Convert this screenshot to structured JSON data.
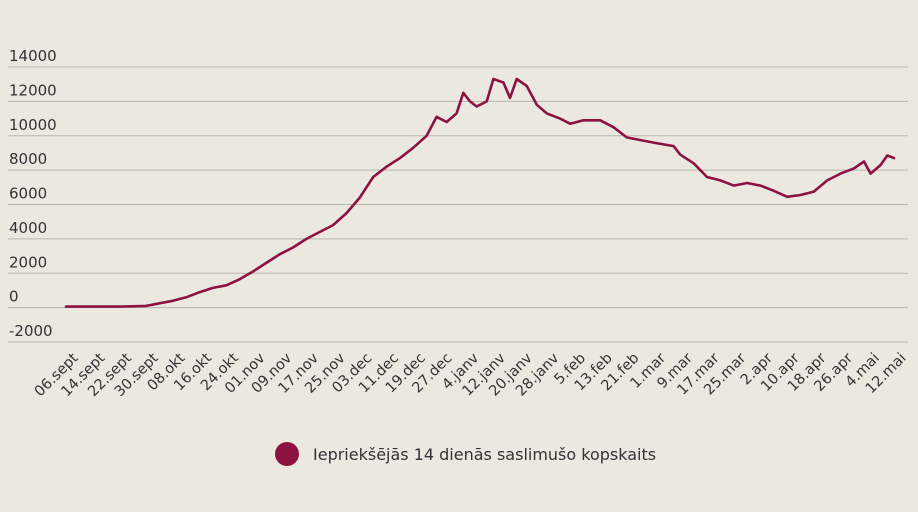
{
  "chart_data": {
    "type": "line",
    "title": "",
    "xlabel": "",
    "ylabel": "",
    "ylim": [
      -2000,
      14000
    ],
    "y_ticks": [
      14000,
      12000,
      10000,
      8000,
      6000,
      4000,
      2000,
      0,
      -2000
    ],
    "y_tick_labels": [
      "14000",
      "12000",
      "10000",
      "8000",
      "6000",
      "4000",
      "2000",
      "0",
      "-2000"
    ],
    "x_range": [
      "2020-09-06",
      "2021-05-12"
    ],
    "x_tick_dates": [
      "2020-09-06",
      "2020-09-14",
      "2020-09-22",
      "2020-09-30",
      "2020-10-08",
      "2020-10-16",
      "2020-10-24",
      "2020-11-01",
      "2020-11-09",
      "2020-11-17",
      "2020-11-25",
      "2020-12-03",
      "2020-12-11",
      "2020-12-19",
      "2020-12-27",
      "2021-01-04",
      "2021-01-12",
      "2021-01-20",
      "2021-01-28",
      "2021-02-05",
      "2021-02-13",
      "2021-02-21",
      "2021-03-01",
      "2021-03-09",
      "2021-03-17",
      "2021-03-25",
      "2021-04-02",
      "2021-04-10",
      "2021-04-18",
      "2021-04-26",
      "2021-05-04",
      "2021-05-12"
    ],
    "x_tick_labels": [
      "06.sept",
      "14.sept",
      "22.sept",
      "30.sept",
      "08.okt",
      "16.okt",
      "24.okt",
      "01.nov",
      "09.nov",
      "17.nov",
      "25.nov",
      "03.dec",
      "11.dec",
      "19.dec",
      "27.dec",
      "4.janv",
      "12.janv",
      "20.janv",
      "28.janv",
      "5.feb",
      "13.feb",
      "21.feb",
      "1.mar",
      "9.mar",
      "17.mar",
      "25.mar",
      "2.apr",
      "10.apr",
      "18.apr",
      "26.apr",
      "4.mai",
      "12.mai"
    ],
    "grid": true,
    "legend_position": "bottom",
    "colors": {
      "series": "#8c1240",
      "grid": "#b9b6ae",
      "background": "#ebe8e0",
      "text": "#333333"
    },
    "series": [
      {
        "name": "Iepriekšējās 14 dienās saslimušo kopskaits",
        "points": [
          [
            "2020-09-06",
            60
          ],
          [
            "2020-09-14",
            60
          ],
          [
            "2020-09-22",
            60
          ],
          [
            "2020-09-30",
            100
          ],
          [
            "2020-10-04",
            250
          ],
          [
            "2020-10-08",
            400
          ],
          [
            "2020-10-12",
            600
          ],
          [
            "2020-10-16",
            900
          ],
          [
            "2020-10-20",
            1150
          ],
          [
            "2020-10-24",
            1300
          ],
          [
            "2020-10-28",
            1650
          ],
          [
            "2020-11-01",
            2100
          ],
          [
            "2020-11-05",
            2600
          ],
          [
            "2020-11-09",
            3100
          ],
          [
            "2020-11-13",
            3500
          ],
          [
            "2020-11-17",
            4000
          ],
          [
            "2020-11-21",
            4400
          ],
          [
            "2020-11-25",
            4800
          ],
          [
            "2020-11-29",
            5500
          ],
          [
            "2020-12-03",
            6400
          ],
          [
            "2020-12-07",
            7600
          ],
          [
            "2020-12-11",
            8200
          ],
          [
            "2020-12-15",
            8700
          ],
          [
            "2020-12-19",
            9300
          ],
          [
            "2020-12-23",
            10000
          ],
          [
            "2020-12-26",
            11100
          ],
          [
            "2020-12-29",
            10800
          ],
          [
            "2021-01-01",
            11300
          ],
          [
            "2021-01-03",
            12500
          ],
          [
            "2021-01-05",
            12000
          ],
          [
            "2021-01-07",
            11700
          ],
          [
            "2021-01-10",
            12000
          ],
          [
            "2021-01-12",
            13300
          ],
          [
            "2021-01-15",
            13100
          ],
          [
            "2021-01-17",
            12200
          ],
          [
            "2021-01-19",
            13300
          ],
          [
            "2021-01-22",
            12900
          ],
          [
            "2021-01-25",
            11800
          ],
          [
            "2021-01-28",
            11300
          ],
          [
            "2021-02-01",
            11000
          ],
          [
            "2021-02-04",
            10700
          ],
          [
            "2021-02-08",
            10900
          ],
          [
            "2021-02-13",
            10900
          ],
          [
            "2021-02-17",
            10500
          ],
          [
            "2021-02-21",
            9900
          ],
          [
            "2021-03-01",
            9600
          ],
          [
            "2021-03-07",
            9400
          ],
          [
            "2021-03-09",
            8900
          ],
          [
            "2021-03-13",
            8400
          ],
          [
            "2021-03-17",
            7600
          ],
          [
            "2021-03-21",
            7400
          ],
          [
            "2021-03-25",
            7100
          ],
          [
            "2021-03-29",
            7250
          ],
          [
            "2021-04-02",
            7100
          ],
          [
            "2021-04-06",
            6800
          ],
          [
            "2021-04-10",
            6450
          ],
          [
            "2021-04-14",
            6550
          ],
          [
            "2021-04-18",
            6750
          ],
          [
            "2021-04-22",
            7400
          ],
          [
            "2021-04-26",
            7800
          ],
          [
            "2021-04-30",
            8100
          ],
          [
            "2021-05-03",
            8500
          ],
          [
            "2021-05-05",
            7800
          ],
          [
            "2021-05-08",
            8300
          ],
          [
            "2021-05-10",
            8850
          ],
          [
            "2021-05-12",
            8700
          ]
        ]
      }
    ]
  }
}
